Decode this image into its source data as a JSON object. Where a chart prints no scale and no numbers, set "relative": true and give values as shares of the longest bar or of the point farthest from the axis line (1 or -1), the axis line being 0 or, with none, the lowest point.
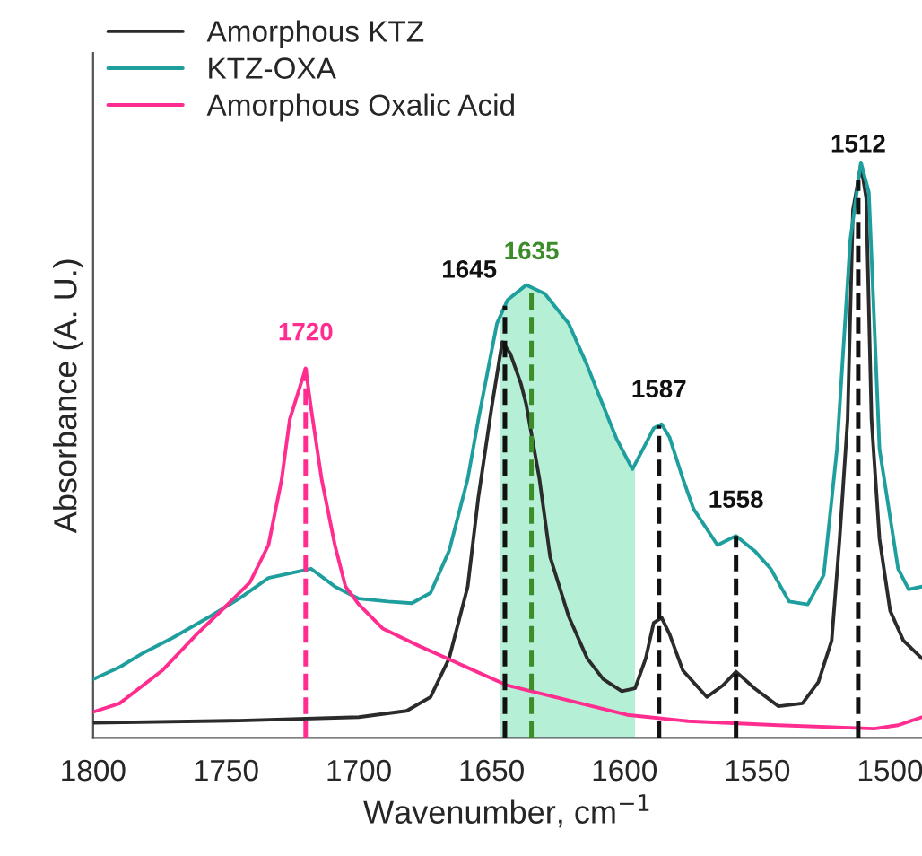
{
  "chart_data": {
    "type": "line",
    "relative": true,
    "xlabel": "Wavenumber, cm$^{−1}$",
    "ylabel": "Absorbance (A. U.)",
    "xlim": [
      1800,
      1488
    ],
    "xticks": [
      1800,
      1750,
      1700,
      1650,
      1600,
      1550,
      1500
    ],
    "legend": "top left",
    "grid": false,
    "line_style": "solid",
    "marker": "none",
    "series": [
      {
        "name": "Amorphous KTZ",
        "color": "#2b2b2b",
        "x": [
          1800,
          1745,
          1700,
          1682,
          1673,
          1666,
          1659,
          1655,
          1650,
          1646,
          1643,
          1639,
          1637,
          1632,
          1628,
          1621,
          1614,
          1608,
          1601,
          1596,
          1592,
          1589,
          1586,
          1583,
          1578,
          1569,
          1563,
          1558,
          1551,
          1542,
          1533,
          1527,
          1522,
          1519,
          1516,
          1514,
          1511,
          1509,
          1507,
          1504,
          1500,
          1495,
          1488
        ],
        "values": [
          0.026,
          0.03,
          0.036,
          0.047,
          0.071,
          0.138,
          0.263,
          0.418,
          0.574,
          0.688,
          0.668,
          0.616,
          0.58,
          0.45,
          0.315,
          0.211,
          0.138,
          0.102,
          0.081,
          0.086,
          0.138,
          0.2,
          0.209,
          0.18,
          0.117,
          0.071,
          0.091,
          0.115,
          0.086,
          0.055,
          0.06,
          0.097,
          0.169,
          0.346,
          0.553,
          0.917,
          0.995,
          0.938,
          0.553,
          0.346,
          0.221,
          0.169,
          0.138
        ]
      },
      {
        "name": "KTZ-OXA",
        "color": "#1f9e9e",
        "x": [
          1800,
          1790,
          1781,
          1770,
          1756,
          1745,
          1734,
          1718,
          1709,
          1700,
          1689,
          1680,
          1673,
          1666,
          1659,
          1655,
          1648,
          1644,
          1637,
          1630,
          1621,
          1614,
          1610,
          1603,
          1597,
          1593,
          1589,
          1586,
          1583,
          1578,
          1574,
          1565,
          1558,
          1551,
          1545,
          1538,
          1531,
          1525,
          1520,
          1515,
          1511,
          1508,
          1504,
          1497,
          1493,
          1488
        ],
        "values": [
          0.102,
          0.123,
          0.148,
          0.174,
          0.211,
          0.242,
          0.278,
          0.294,
          0.263,
          0.242,
          0.237,
          0.234,
          0.252,
          0.325,
          0.45,
          0.553,
          0.72,
          0.761,
          0.787,
          0.772,
          0.72,
          0.647,
          0.6,
          0.52,
          0.467,
          0.502,
          0.538,
          0.545,
          0.522,
          0.45,
          0.398,
          0.335,
          0.351,
          0.325,
          0.294,
          0.237,
          0.232,
          0.283,
          0.502,
          0.865,
          1.0,
          0.948,
          0.502,
          0.294,
          0.258,
          0.263
        ]
      },
      {
        "name": "Amorphous Oxalic Acid",
        "color": "#ff2d8f",
        "x": [
          1800,
          1790,
          1774,
          1761,
          1752,
          1741,
          1734,
          1729,
          1726,
          1720,
          1718,
          1714,
          1709,
          1705,
          1700,
          1691,
          1677,
          1659,
          1644,
          1621,
          1599,
          1576,
          1542,
          1506,
          1497,
          1488
        ],
        "values": [
          0.045,
          0.06,
          0.117,
          0.18,
          0.22,
          0.27,
          0.335,
          0.45,
          0.553,
          0.642,
          0.574,
          0.45,
          0.335,
          0.263,
          0.232,
          0.19,
          0.159,
          0.122,
          0.091,
          0.065,
          0.04,
          0.029,
          0.022,
          0.016,
          0.022,
          0.036
        ]
      }
    ],
    "ref_lines": [
      {
        "axis": "x",
        "value": 1720,
        "label": "1720",
        "color": "#ff2d8f",
        "line_style": "dashed"
      },
      {
        "axis": "x",
        "value": 1645,
        "label": "1645",
        "color": "#111111",
        "line_style": "dashed"
      },
      {
        "axis": "x",
        "value": 1635,
        "label": "1635",
        "color": "#3c8c2a",
        "line_style": "dashed"
      },
      {
        "axis": "x",
        "value": 1587,
        "label": "1587",
        "color": "#111111",
        "line_style": "dashed"
      },
      {
        "axis": "x",
        "value": 1558,
        "label": "1558",
        "color": "#111111",
        "line_style": "dashed"
      },
      {
        "axis": "x",
        "value": 1512,
        "label": "1512",
        "color": "#111111",
        "line_style": "dashed"
      }
    ],
    "bands": [
      {
        "axis": "x",
        "from": 1647,
        "to": 1596,
        "color": "#b5f0d6"
      }
    ]
  }
}
